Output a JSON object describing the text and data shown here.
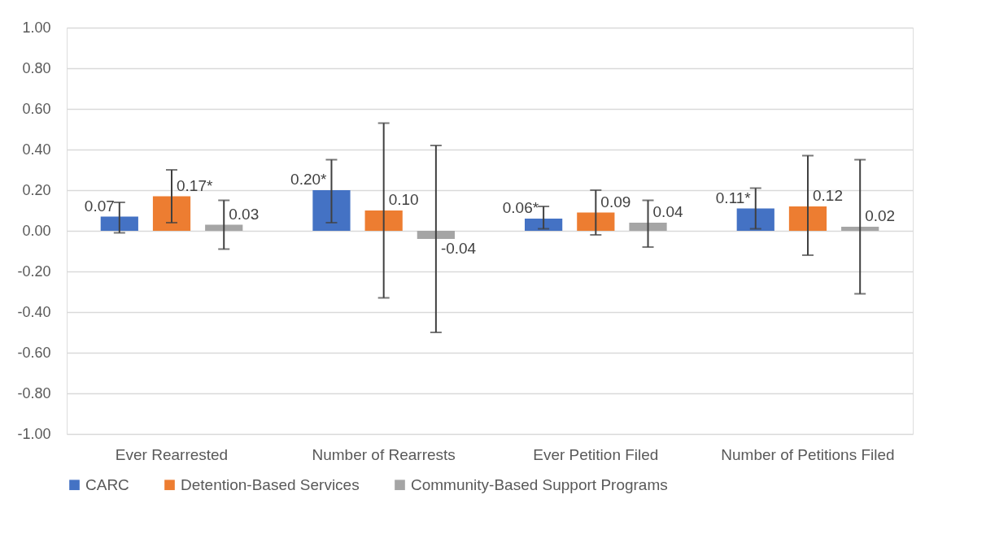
{
  "chart_data": {
    "type": "bar",
    "categories": [
      "Ever Rearrested",
      "Number of Rearrests",
      "Ever Petition Filed",
      "Number of Petitions Filed"
    ],
    "series": [
      {
        "name": "CARC",
        "color": "#4472c4",
        "values": [
          0.07,
          0.2,
          0.06,
          0.11
        ],
        "value_labels": [
          "0.07",
          "0.20*",
          "0.06*",
          "0.11*"
        ],
        "errors": [
          [
            -0.01,
            0.14
          ],
          [
            0.04,
            0.35
          ],
          [
            0.01,
            0.12
          ],
          [
            0.01,
            0.21
          ]
        ]
      },
      {
        "name": "Detention-Based Services",
        "color": "#ed7d31",
        "values": [
          0.17,
          0.1,
          0.09,
          0.12
        ],
        "value_labels": [
          "0.17*",
          "0.10",
          "0.09",
          "0.12"
        ],
        "errors": [
          [
            0.04,
            0.3
          ],
          [
            -0.33,
            0.53
          ],
          [
            -0.02,
            0.2
          ],
          [
            -0.12,
            0.37
          ]
        ]
      },
      {
        "name": "Community-Based Support Programs",
        "color": "#a5a5a5",
        "values": [
          0.03,
          -0.04,
          0.04,
          0.02
        ],
        "value_labels": [
          "0.03",
          "-0.04",
          "0.04",
          "0.02"
        ],
        "errors": [
          [
            -0.09,
            0.15
          ],
          [
            -0.5,
            0.42
          ],
          [
            -0.08,
            0.15
          ],
          [
            -0.31,
            0.35
          ]
        ]
      }
    ],
    "ylim": [
      -1.0,
      1.0
    ],
    "yticks": [
      {
        "value": -1.0,
        "label": "-1.00"
      },
      {
        "value": -0.8,
        "label": "-0.80"
      },
      {
        "value": -0.6,
        "label": "-0.60"
      },
      {
        "value": -0.4,
        "label": "-0.40"
      },
      {
        "value": -0.2,
        "label": "-0.20"
      },
      {
        "value": 0,
        "label": "0.00"
      },
      {
        "value": 0.2,
        "label": "0.20"
      },
      {
        "value": 0.4,
        "label": "0.40"
      },
      {
        "value": 0.6,
        "label": "0.60"
      },
      {
        "value": 0.8,
        "label": "0.80"
      },
      {
        "value": 1.0,
        "label": "1.00"
      }
    ],
    "grid": true,
    "legend": "bottom"
  }
}
